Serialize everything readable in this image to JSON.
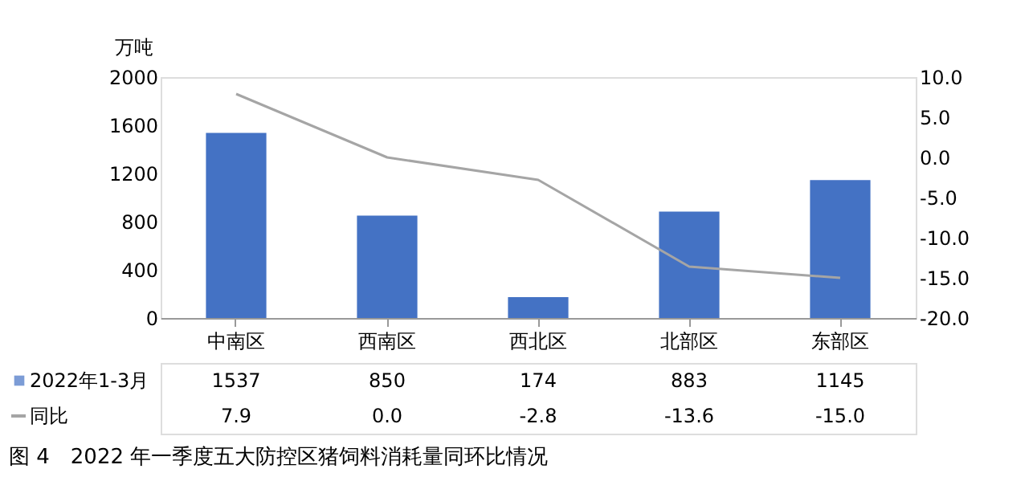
{
  "chart_data": {
    "type": "bar",
    "title": "图 4　2022 年一季度五大防控区猪饲料消耗量同环比情况",
    "ylabel": "万吨",
    "categories": [
      "中南区",
      "西南区",
      "西北区",
      "北部区",
      "东部区"
    ],
    "series": [
      {
        "name": "2022年1-3月",
        "color": "#4472c4",
        "values": [
          1537,
          850,
          174,
          883,
          1145
        ],
        "value_labels": [
          "1537",
          "850",
          "174",
          "883",
          "1145"
        ]
      },
      {
        "name": "同比",
        "type": "line",
        "axis": "y2",
        "color": "#a5a5a5",
        "values": [
          7.9,
          0.0,
          -2.8,
          -13.6,
          -15.0
        ],
        "value_labels": [
          "7.9",
          "0.0",
          "-2.8",
          "-13.6",
          "-15.0"
        ]
      }
    ],
    "ylim": [
      0,
      2000
    ],
    "yticks": [
      0,
      400,
      800,
      1200,
      1600,
      2000
    ],
    "y2lim": [
      -20,
      10
    ],
    "y2ticks": [
      {
        "value": 10,
        "label": "10.0"
      },
      {
        "value": 5,
        "label": "5.0"
      },
      {
        "value": 0,
        "label": "0.0"
      },
      {
        "value": -5,
        "label": "-5.0"
      },
      {
        "value": -10,
        "label": "-10.0"
      },
      {
        "value": -15,
        "label": "-15.0"
      },
      {
        "value": -20,
        "label": "-20.0"
      }
    ],
    "grid": false,
    "legend": "bottom"
  }
}
